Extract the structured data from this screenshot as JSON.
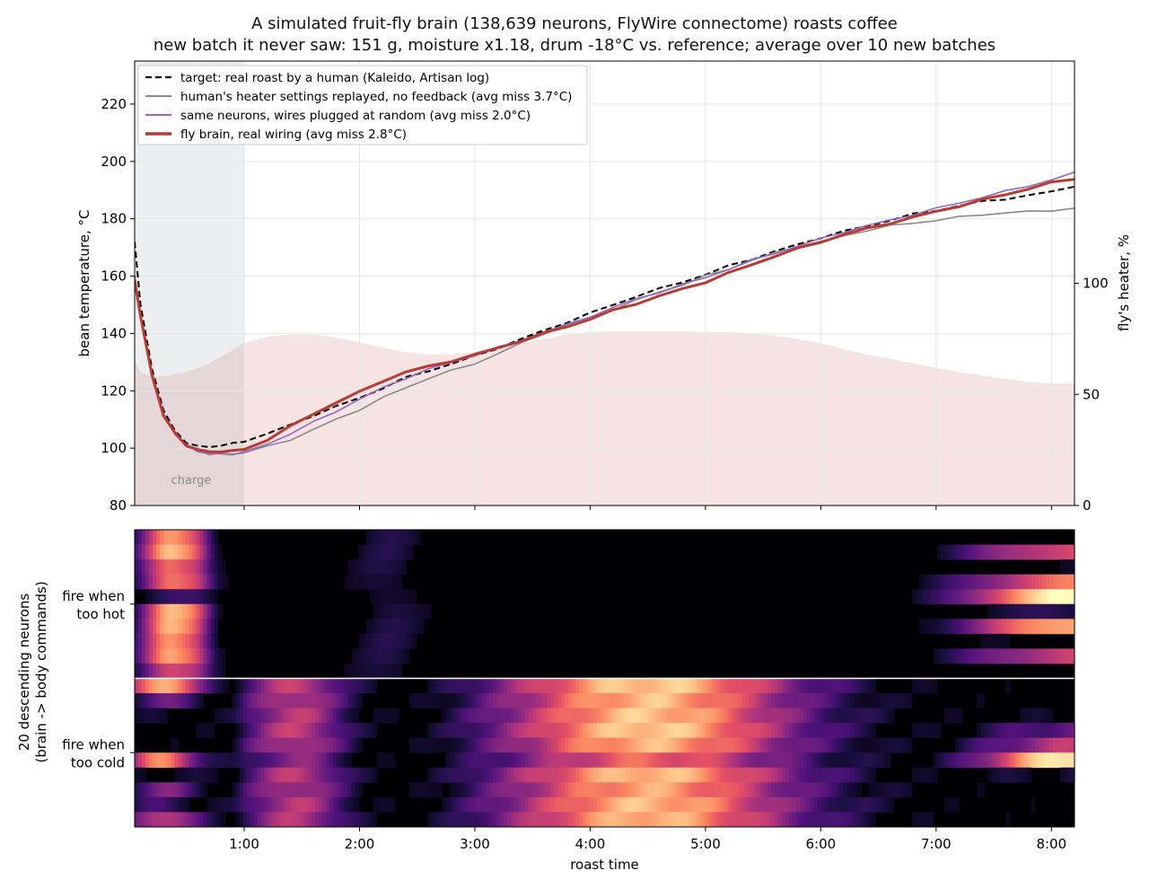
{
  "figure": {
    "title": "A simulated fruit-fly brain (138,639 neurons, FlyWire connectome) roasts coffee",
    "subtitle": "new batch it never saw: 151 g, moisture x1.18, drum -18°C vs. reference; average over 10 new batches"
  },
  "chart_data": [
    {
      "type": "line",
      "ylabel": "bean temperature, °C",
      "y2label": "fly's heater, %",
      "xlim": [
        0.05,
        8.2
      ],
      "ylim": [
        80,
        235
      ],
      "y2lim": [
        0,
        200
      ],
      "yticks": [
        80,
        100,
        120,
        140,
        160,
        180,
        200,
        220
      ],
      "y2ticks": [
        0,
        50,
        100
      ],
      "x_tick_values": [
        1,
        2,
        3,
        4,
        5,
        6,
        7,
        8
      ],
      "x_tick_labels": [
        "1:00",
        "2:00",
        "3:00",
        "4:00",
        "5:00",
        "6:00",
        "7:00",
        "8:00"
      ],
      "grid": true,
      "legend_position": "top-left",
      "charge_region": {
        "x": [
          0.05,
          1.0
        ],
        "label": "charge"
      },
      "x": [
        0.05,
        0.1,
        0.2,
        0.3,
        0.4,
        0.5,
        0.6,
        0.7,
        0.8,
        0.9,
        1.0,
        1.2,
        1.4,
        1.6,
        1.8,
        2.0,
        2.2,
        2.4,
        2.6,
        2.8,
        3.0,
        3.2,
        3.4,
        3.6,
        3.8,
        4.0,
        4.2,
        4.4,
        4.6,
        4.8,
        5.0,
        5.2,
        5.4,
        5.6,
        5.8,
        6.0,
        6.2,
        6.4,
        6.6,
        6.8,
        7.0,
        7.2,
        7.4,
        7.6,
        7.8,
        8.0,
        8.2
      ],
      "series": [
        {
          "name": "target: real roast by a human (Kaleido, Artisan log)",
          "color": "#000000",
          "dash": true,
          "values": [
            172,
            150,
            128,
            113,
            106,
            102,
            100.5,
            100.5,
            101,
            101.5,
            102.5,
            105,
            108,
            111.5,
            114.5,
            117.5,
            121,
            124.5,
            127,
            129.5,
            132,
            135,
            138,
            141,
            144,
            147,
            150,
            153,
            155.5,
            158,
            160.5,
            163.5,
            166,
            168.5,
            171,
            173.5,
            175.5,
            177.5,
            179.5,
            181.5,
            183,
            184.5,
            186,
            187,
            188,
            189.5,
            191.5
          ]
        },
        {
          "name": "human's heater settings replayed, no feedback (avg miss 3.7°C)",
          "color": "#8a8a8a",
          "dash": false,
          "values": [
            160,
            147,
            126,
            112,
            105,
            101,
            99,
            98,
            98,
            98,
            98.5,
            100.5,
            103,
            106.5,
            110,
            113.5,
            117.5,
            121,
            124.5,
            127,
            129.5,
            133,
            136.5,
            140,
            143,
            145.5,
            148.5,
            151.5,
            154.5,
            157,
            160,
            162.5,
            165.5,
            168,
            170.5,
            172,
            174,
            176,
            177.5,
            178.5,
            179.5,
            180.5,
            181.5,
            182,
            182.5,
            183,
            183.5
          ]
        },
        {
          "name": "same neurons, wires plugged at random (avg miss 2.0°C)",
          "color": "#9467bd",
          "dash": false,
          "values": [
            160,
            147,
            126,
            112,
            105,
            101,
            99,
            98,
            98,
            98,
            98.5,
            101.5,
            105,
            109,
            113,
            117,
            121,
            124.5,
            127.5,
            130,
            132.5,
            135,
            137.5,
            140.5,
            143,
            146,
            149,
            152,
            154.5,
            157,
            159.5,
            162.5,
            165.5,
            168,
            170.5,
            173,
            175.5,
            177.5,
            179.5,
            181.5,
            183.5,
            185.5,
            187.5,
            189.5,
            191.5,
            193.5,
            196
          ]
        },
        {
          "name": "fly brain, real wiring (avg miss 2.8°C)",
          "color": "#b83b34",
          "dash": false,
          "values": [
            159,
            146,
            125.5,
            111.5,
            105,
            101,
            99.5,
            98.5,
            99,
            99,
            99.5,
            103,
            107.5,
            112,
            116,
            119.5,
            123.5,
            126.5,
            128.5,
            130.5,
            132.5,
            135,
            137.5,
            140,
            142.5,
            145,
            148,
            150.5,
            153,
            155.5,
            158,
            161,
            164,
            167,
            169.5,
            172,
            174.5,
            176.5,
            178.5,
            180.5,
            182.5,
            184.5,
            186.5,
            188.5,
            190.5,
            192.5,
            194
          ]
        }
      ],
      "heater": {
        "name": "fly's heater, %",
        "color": "#f3d9d9",
        "x": [
          0.05,
          0.1,
          0.2,
          0.3,
          0.4,
          0.5,
          0.6,
          0.7,
          0.8,
          0.9,
          1.0,
          1.2,
          1.4,
          1.6,
          1.8,
          2.0,
          2.2,
          2.4,
          2.6,
          2.8,
          3.0,
          3.2,
          3.4,
          3.6,
          3.8,
          4.0,
          4.2,
          4.4,
          4.6,
          4.8,
          5.0,
          5.2,
          5.4,
          5.6,
          5.8,
          6.0,
          6.2,
          6.4,
          6.6,
          6.8,
          7.0,
          7.2,
          7.4,
          7.6,
          7.8,
          8.0,
          8.2
        ],
        "values": [
          65,
          60,
          58,
          58,
          59,
          60,
          62,
          64,
          67,
          70,
          73,
          76,
          77,
          77,
          75.5,
          73.5,
          71,
          69,
          68,
          68,
          69,
          71,
          73,
          75,
          77,
          78,
          78.5,
          78.5,
          78.5,
          78.5,
          78,
          78,
          77.5,
          76.5,
          75,
          73,
          70.5,
          68,
          66,
          64,
          62,
          60,
          58.5,
          57,
          55.5,
          55,
          55
        ]
      }
    },
    {
      "type": "heatmap",
      "ylabel": "20 descending neurons\n(brain -> body commands)",
      "xlabel": "roast time",
      "xlim": [
        0.05,
        8.2
      ],
      "x_tick_values": [
        1,
        2,
        3,
        4,
        5,
        6,
        7,
        8
      ],
      "x_tick_labels": [
        "1:00",
        "2:00",
        "3:00",
        "4:00",
        "5:00",
        "6:00",
        "7:00",
        "8:00"
      ],
      "group_labels": [
        "fire when\ntoo hot",
        "fire when\ntoo cold"
      ],
      "colormap": "magma",
      "hot_rows": [
        {
          "start": 0.74,
          "late": 0.0
        },
        {
          "start": 0.86,
          "late": 0.6
        },
        {
          "start": 0.7,
          "late": 0.05
        },
        {
          "start": 0.72,
          "late": 0.7
        },
        {
          "start": 0.2,
          "late": 1.0
        },
        {
          "start": 0.82,
          "late": 0.15
        },
        {
          "start": 0.8,
          "late": 0.85
        },
        {
          "start": 0.75,
          "late": 0.05
        },
        {
          "start": 0.82,
          "late": 0.55
        },
        {
          "start": 0.6,
          "late": 0.0
        }
      ],
      "cold_rows": [
        {
          "start": 0.9,
          "gain": 0.95,
          "late": 0.0
        },
        {
          "start": 0.3,
          "gain": 0.9,
          "late": 0.0
        },
        {
          "start": 0.05,
          "gain": 0.92,
          "late": 0.05
        },
        {
          "start": 0.0,
          "gain": 0.95,
          "late": 0.3
        },
        {
          "start": 0.0,
          "gain": 0.88,
          "late": 0.5
        },
        {
          "start": 0.75,
          "gain": 0.7,
          "late": 1.0
        },
        {
          "start": 0.1,
          "gain": 0.92,
          "late": 0.1
        },
        {
          "start": 0.35,
          "gain": 0.85,
          "late": 0.0
        },
        {
          "start": 0.2,
          "gain": 0.9,
          "late": 0.0
        },
        {
          "start": 0.55,
          "gain": 0.9,
          "late": 0.0
        }
      ]
    }
  ]
}
